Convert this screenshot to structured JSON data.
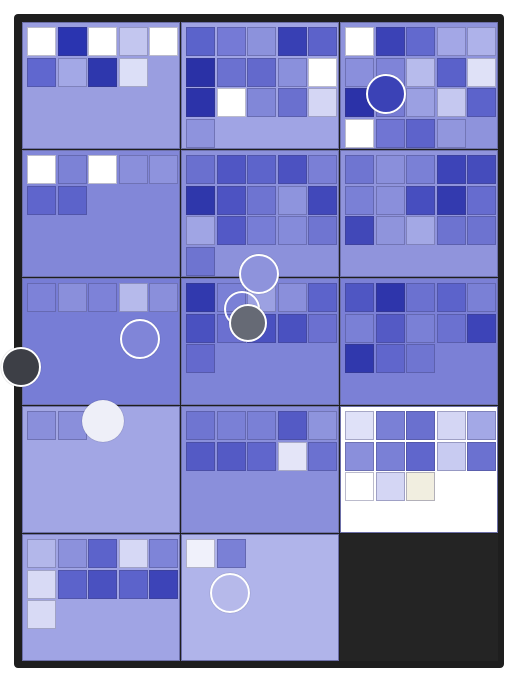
{
  "board": {
    "frame_color": "#1e1e1e",
    "columns": 3,
    "rows": 5,
    "panels": [
      {
        "bg": "#9a9ee0",
        "tiles": [
          [
            "#ffffff",
            "#2a34b0",
            "#ffffff",
            "#c3c6ef",
            "#ffffff"
          ],
          [
            "#6067cf",
            "#a3a8e6",
            "#2e37ad",
            "#dcdff7",
            null
          ]
        ]
      },
      {
        "bg": "#a0a4e4",
        "tiles": [
          [
            "#5b63cb",
            "#757ad6",
            "#8c92dc",
            "#3840b4",
            "#5c62ca"
          ],
          [
            "#2a31a6",
            "#6b71d0",
            "#6369cc",
            "#8a90dc",
            "#ffffff"
          ],
          [
            "#2c33a9",
            "#ffffff",
            "#8187d8",
            "#6a70cf",
            "#d4d6f4"
          ],
          [
            "#8e93dd",
            null,
            null,
            null,
            null
          ]
        ]
      },
      {
        "bg": "#8e93dc",
        "tiles": [
          [
            "#ffffff",
            "#3b42b6",
            "#6269ce",
            "#a3a7e6",
            "#aeb2ea"
          ],
          [
            "#8a8fdc",
            "#7f84d8",
            "#b7bbec",
            "#5a61ca",
            "#dfe1f7"
          ],
          [
            "#2b32a8",
            "#777cd5",
            "#9ba0e2",
            "#c5c8f0",
            "#5c63cb"
          ],
          [
            "#ffffff",
            "#7075d3",
            "#5d63cb",
            "#9196dd",
            null
          ]
        ]
      },
      {
        "bg": "#8287d8",
        "tiles": [
          [
            "#ffffff",
            "#7c82d6",
            "#ffffff",
            "#8a8fdb",
            "#8e93dd"
          ],
          [
            "#5f65cc",
            "#5c63ca",
            null,
            null,
            null
          ]
        ]
      },
      {
        "bg": "#8c91db",
        "tiles": [
          [
            "#6a70cf",
            "#5056c4",
            "#5d64cb",
            "#4c52c1",
            "#7a7fd6"
          ],
          [
            "#2f37ab",
            "#4d53c2",
            "#6e74d1",
            "#8e94dd",
            "#4148ba"
          ],
          [
            "#a0a5e4",
            "#5359c6",
            "#777dd6",
            "#858bda",
            "#6f75d1"
          ],
          [
            "#6e74d0",
            null,
            null,
            null,
            null
          ]
        ]
      },
      {
        "bg": "#9094dc",
        "tiles": [
          [
            "#6f75d1",
            "#8a8fdb",
            "#7a80d6",
            "#3d44b8",
            "#454cbc"
          ],
          [
            "#7a80d6",
            "#8a8fdb",
            "#474ebf",
            "#333aaf",
            "#666ccf"
          ],
          [
            "#4148b8",
            "#8f94dc",
            "#a3a8e5",
            "#6d73d0",
            "#6d73d0"
          ]
        ]
      },
      {
        "bg": "#777dd6",
        "tiles": [
          [
            "#7d82d8",
            "#8a8fdb",
            "#7d82d8",
            "#b6baeb",
            "#8a8fdb"
          ]
        ]
      },
      {
        "bg": "#7e84d7",
        "tiles": [
          [
            "#3139ae",
            "#7a80d6",
            "#9ca1e2",
            "#8a8fdb",
            "#5c63cb"
          ],
          [
            "#4a51c0",
            "#6b70d0",
            "#4a51c0",
            "#4a51c0",
            "#6b70d0"
          ],
          [
            "#6469cd",
            null,
            null,
            null,
            null
          ]
        ]
      },
      {
        "bg": "#7b80d6",
        "tiles": [
          [
            "#4f56c3",
            "#2e35ab",
            "#6b71d0",
            "#5c63cb",
            "#7a80d6"
          ],
          [
            "#7a80d6",
            "#545ac5",
            "#7a80d6",
            "#6b71d0",
            "#3d44b8"
          ],
          [
            "#3038ad",
            "#6066cc",
            "#6f75d1",
            null,
            null
          ]
        ]
      },
      {
        "bg": "#a2a6e4",
        "tiles": [
          [
            "#8a8fdb",
            "#8a8fdb",
            null,
            null,
            null
          ]
        ]
      },
      {
        "bg": "#8a8fdb",
        "tiles": [
          [
            "#6f75d1",
            "#7a80d6",
            "#7a80d6",
            "#545ac5",
            "#8e94dd"
          ],
          [
            "#545ac5",
            "#545ac5",
            "#6066cc",
            "#e4e5f8",
            "#6b71d0"
          ]
        ]
      },
      {
        "bg": "#ffffff",
        "tiles": [
          [
            "#dfe1f8",
            "#7a80d6",
            "#6a70cf",
            "#d4d6f4",
            "#a3a8e6"
          ],
          [
            "#8a8fdb",
            "#7a80d6",
            "#6066cc",
            "#c8cbf1",
            "#6b71d0"
          ],
          [
            "#ffffff",
            "#d4d6f4",
            "#f1eee0",
            null,
            null
          ]
        ]
      },
      {
        "bg": "#a0a4e4",
        "tiles": [
          [
            "#b3b7ea",
            "#8c91dc",
            "#5c63cb",
            "#d6d8f5",
            "#7e84d8"
          ],
          [
            "#d8daf5",
            "#5c63cb",
            "#4a51c0",
            "#5c63cb",
            "#3d44b8"
          ],
          [
            "#d8daf5",
            null,
            null,
            null,
            null
          ]
        ]
      },
      {
        "bg": "#b0b4ea",
        "tiles": [
          [
            "#f0f1fb",
            "#7a80d6",
            null,
            null,
            null
          ]
        ]
      },
      {
        "bg": "#242424",
        "tiles": []
      }
    ]
  },
  "tokens": [
    {
      "name": "token-dark-blue",
      "fill": "#3b42b6"
    },
    {
      "name": "token-lavender",
      "fill": "#8e93dc"
    },
    {
      "name": "token-periwinkle",
      "fill": "#8085d8"
    },
    {
      "name": "token-outline",
      "fill": "transparent"
    },
    {
      "name": "token-gray",
      "fill": "#666a75"
    },
    {
      "name": "token-charcoal",
      "fill": "#3d3f46"
    },
    {
      "name": "token-white",
      "fill": "#eeeff8"
    },
    {
      "name": "token-pale",
      "fill": "#b6b9ea"
    }
  ]
}
